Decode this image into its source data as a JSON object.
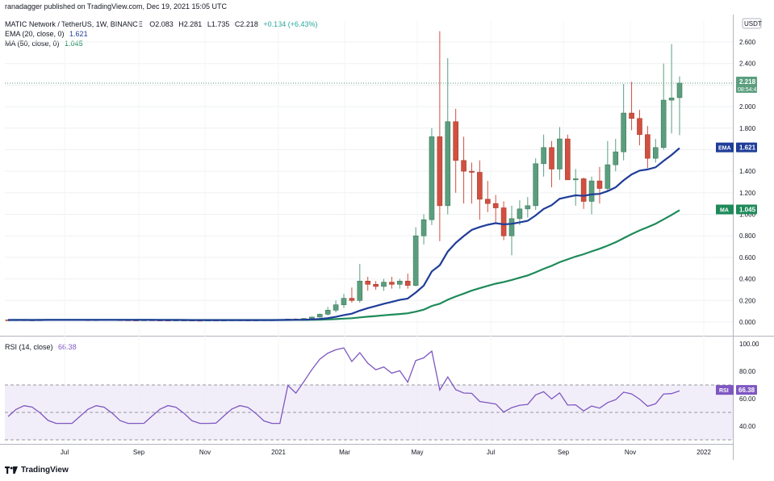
{
  "header": {
    "publisher_line": "ranadagger published on TradingView.com, Dec 19, 2021 15:05 UTC",
    "symbol_line": "MATIC Network / TetherUS, 1W, BINANCE",
    "ohlc": {
      "o": "O2.083",
      "h": "H2.281",
      "l": "L1.735",
      "c": "C2.218",
      "chg": "+0.134 (+6.43%)"
    },
    "ema_line": "EMA (20, close, 0)",
    "ema_value": "1.621",
    "ma_line": "MA (50, close, 0)",
    "ma_value": "1.045",
    "rsi_line": "RSI (14, close)",
    "rsi_value": "66.38",
    "currency": "USDT"
  },
  "footer": {
    "brand": "TradingView"
  },
  "colors": {
    "up": "#5b9e7e",
    "down": "#d1503f",
    "ema": "#1f3d99",
    "ma": "#1e8a5a",
    "rsi": "#7e57c2",
    "rsi_band": "#ede7f6",
    "price_tag": "#5b9e7e"
  },
  "chart_data": {
    "type": "candlestick",
    "price_axis": {
      "min": 0,
      "max": 2.6,
      "ticks": [
        "0.000",
        "0.200",
        "0.400",
        "0.600",
        "0.800",
        "1.000",
        "1.200",
        "1.400",
        "1.600",
        "1.800",
        "2.000",
        "2.200",
        "2.400",
        "2.600"
      ]
    },
    "rsi_axis": {
      "ticks": [
        "40.00",
        "60.00",
        "80.00",
        "100.00"
      ],
      "bands": [
        30,
        50,
        70
      ]
    },
    "x_labels": [
      "Jul",
      "Sep",
      "Nov",
      "2021",
      "Mar",
      "May",
      "Jul",
      "Sep",
      "Nov",
      "2022"
    ],
    "last_price_tag": {
      "price": "2.218",
      "countdown": "08:54:47"
    },
    "ema_tag": {
      "label": "EMA",
      "value": "1.621"
    },
    "ma_tag": {
      "label": "MA",
      "value": "1.045"
    },
    "rsi_tag": {
      "label": "RSI",
      "value": "66.38"
    },
    "candles": [
      [
        0.02,
        0.022,
        0.018,
        0.019
      ],
      [
        0.019,
        0.021,
        0.017,
        0.02
      ],
      [
        0.02,
        0.022,
        0.018,
        0.019
      ],
      [
        0.019,
        0.021,
        0.017,
        0.018
      ],
      [
        0.018,
        0.021,
        0.016,
        0.02
      ],
      [
        0.02,
        0.023,
        0.018,
        0.021
      ],
      [
        0.021,
        0.023,
        0.019,
        0.02
      ],
      [
        0.02,
        0.022,
        0.018,
        0.021
      ],
      [
        0.021,
        0.024,
        0.019,
        0.022
      ],
      [
        0.022,
        0.023,
        0.019,
        0.02
      ],
      [
        0.02,
        0.022,
        0.017,
        0.018
      ],
      [
        0.018,
        0.021,
        0.016,
        0.02
      ],
      [
        0.02,
        0.023,
        0.018,
        0.022
      ],
      [
        0.022,
        0.024,
        0.019,
        0.02
      ],
      [
        0.02,
        0.022,
        0.018,
        0.019
      ],
      [
        0.019,
        0.021,
        0.017,
        0.018
      ],
      [
        0.018,
        0.02,
        0.016,
        0.017
      ],
      [
        0.017,
        0.02,
        0.015,
        0.019
      ],
      [
        0.019,
        0.021,
        0.017,
        0.018
      ],
      [
        0.018,
        0.02,
        0.016,
        0.017
      ],
      [
        0.017,
        0.019,
        0.015,
        0.016
      ],
      [
        0.016,
        0.019,
        0.015,
        0.018
      ],
      [
        0.018,
        0.02,
        0.016,
        0.017
      ],
      [
        0.017,
        0.019,
        0.015,
        0.016
      ],
      [
        0.016,
        0.018,
        0.014,
        0.015
      ],
      [
        0.015,
        0.018,
        0.014,
        0.017
      ],
      [
        0.017,
        0.019,
        0.015,
        0.016
      ],
      [
        0.016,
        0.018,
        0.015,
        0.017
      ],
      [
        0.017,
        0.02,
        0.016,
        0.019
      ],
      [
        0.019,
        0.021,
        0.017,
        0.018
      ],
      [
        0.018,
        0.02,
        0.016,
        0.017
      ],
      [
        0.017,
        0.019,
        0.016,
        0.018
      ],
      [
        0.018,
        0.021,
        0.017,
        0.02
      ],
      [
        0.02,
        0.022,
        0.018,
        0.019
      ],
      [
        0.019,
        0.024,
        0.018,
        0.023
      ],
      [
        0.023,
        0.03,
        0.021,
        0.028
      ],
      [
        0.028,
        0.034,
        0.025,
        0.026
      ],
      [
        0.026,
        0.036,
        0.024,
        0.033
      ],
      [
        0.033,
        0.05,
        0.03,
        0.046
      ],
      [
        0.046,
        0.08,
        0.04,
        0.072
      ],
      [
        0.072,
        0.14,
        0.06,
        0.11
      ],
      [
        0.11,
        0.2,
        0.09,
        0.16
      ],
      [
        0.16,
        0.26,
        0.13,
        0.22
      ],
      [
        0.22,
        0.32,
        0.18,
        0.2
      ],
      [
        0.2,
        0.54,
        0.18,
        0.38
      ],
      [
        0.38,
        0.42,
        0.29,
        0.35
      ],
      [
        0.35,
        0.38,
        0.3,
        0.33
      ],
      [
        0.33,
        0.4,
        0.29,
        0.37
      ],
      [
        0.37,
        0.42,
        0.31,
        0.35
      ],
      [
        0.35,
        0.4,
        0.31,
        0.38
      ],
      [
        0.38,
        0.45,
        0.31,
        0.34
      ],
      [
        0.34,
        0.88,
        0.33,
        0.8
      ],
      [
        0.8,
        1.0,
        0.72,
        0.95
      ],
      [
        0.95,
        1.8,
        0.9,
        1.72
      ],
      [
        1.72,
        2.7,
        0.75,
        1.08
      ],
      [
        1.08,
        2.45,
        1.0,
        1.86
      ],
      [
        1.86,
        1.98,
        1.2,
        1.5
      ],
      [
        1.5,
        1.72,
        1.1,
        1.4
      ],
      [
        1.4,
        1.48,
        1.1,
        1.39
      ],
      [
        1.39,
        1.5,
        0.95,
        1.14
      ],
      [
        1.14,
        1.31,
        1.02,
        1.1
      ],
      [
        1.1,
        1.18,
        0.92,
        1.06
      ],
      [
        1.06,
        1.12,
        0.76,
        0.8
      ],
      [
        0.8,
        1.08,
        0.62,
        0.96
      ],
      [
        0.96,
        1.13,
        0.9,
        1.05
      ],
      [
        1.05,
        1.16,
        0.97,
        1.08
      ],
      [
        1.08,
        1.52,
        1.04,
        1.47
      ],
      [
        1.47,
        1.74,
        1.35,
        1.62
      ],
      [
        1.62,
        1.68,
        1.25,
        1.42
      ],
      [
        1.42,
        1.81,
        1.32,
        1.7
      ],
      [
        1.7,
        1.74,
        1.32,
        1.32
      ],
      [
        1.32,
        1.42,
        1.08,
        1.33
      ],
      [
        1.33,
        1.34,
        1.05,
        1.12
      ],
      [
        1.12,
        1.35,
        1.0,
        1.31
      ],
      [
        1.31,
        1.44,
        1.1,
        1.24
      ],
      [
        1.24,
        1.68,
        1.22,
        1.46
      ],
      [
        1.46,
        1.7,
        1.4,
        1.58
      ],
      [
        1.58,
        2.21,
        1.5,
        1.94
      ],
      [
        1.94,
        2.23,
        1.78,
        1.89
      ],
      [
        1.89,
        1.97,
        1.64,
        1.74
      ],
      [
        1.74,
        1.82,
        1.43,
        1.52
      ],
      [
        1.52,
        1.7,
        1.48,
        1.62
      ],
      [
        1.62,
        2.4,
        1.6,
        2.06
      ],
      [
        2.06,
        2.58,
        1.75,
        2.08
      ],
      [
        2.083,
        2.281,
        1.735,
        2.218
      ]
    ]
  }
}
